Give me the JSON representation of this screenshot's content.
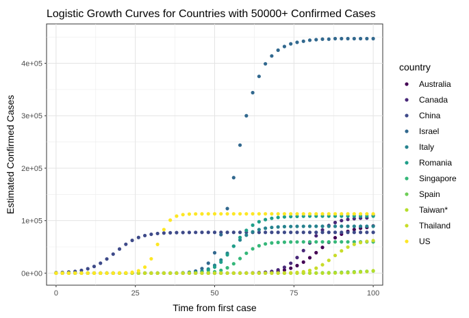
{
  "chart_data": {
    "type": "scatter",
    "title": "Logistic Growth Curves for Countries with 50000+ Confirmed Cases",
    "xlabel": "Time from first case",
    "ylabel": "Estimated Confirmed Cases",
    "xlim": [
      -3,
      103
    ],
    "ylim": [
      -23000,
      475000
    ],
    "x_ticks": [
      0,
      25,
      50,
      75,
      100
    ],
    "x_tick_labels": [
      "0",
      "25",
      "50",
      "75",
      "100"
    ],
    "y_ticks": [
      0,
      100000,
      200000,
      300000,
      400000
    ],
    "y_tick_labels": [
      "0e+00",
      "1e+05",
      "2e+05",
      "3e+05",
      "4e+05"
    ],
    "x": [
      0,
      2,
      4,
      6,
      8,
      10,
      12,
      14,
      16,
      18,
      20,
      22,
      24,
      26,
      28,
      30,
      32,
      34,
      36,
      38,
      40,
      42,
      44,
      46,
      48,
      50,
      52,
      54,
      56,
      58,
      60,
      62,
      64,
      66,
      68,
      70,
      72,
      74,
      76,
      78,
      80,
      82,
      84,
      86,
      88,
      90,
      92,
      94,
      96,
      98,
      100
    ],
    "grid": true,
    "legend_title": "country",
    "legend_position": "right",
    "series": [
      {
        "name": "Australia",
        "color": "#440154",
        "values": [
          0,
          0,
          0,
          0,
          0,
          0,
          0,
          0,
          0,
          0,
          0,
          0,
          0,
          0,
          0,
          0,
          0,
          0,
          0,
          0,
          0,
          0,
          0,
          0,
          0,
          0,
          0,
          0,
          0,
          100,
          200,
          400,
          700,
          1200,
          2100,
          3500,
          5800,
          9300,
          14300,
          21000,
          29300,
          38900,
          49000,
          58800,
          67400,
          74300,
          79500,
          83100,
          85500,
          87000,
          90000
        ]
      },
      {
        "name": "Canada",
        "color": "#482878",
        "values": [
          0,
          0,
          0,
          0,
          0,
          0,
          0,
          0,
          0,
          0,
          0,
          0,
          0,
          0,
          0,
          0,
          0,
          0,
          0,
          0,
          0,
          0,
          0,
          0,
          0,
          0,
          0,
          0,
          0,
          100,
          200,
          400,
          900,
          1700,
          3300,
          6200,
          11100,
          18800,
          29600,
          43000,
          57500,
          71100,
          82300,
          90700,
          96400,
          100100,
          102400,
          103800,
          104700,
          105200,
          110000
        ]
      },
      {
        "name": "China",
        "color": "#3e4a89",
        "values": [
          800,
          1300,
          2100,
          3300,
          5300,
          8300,
          12700,
          18900,
          26900,
          36200,
          45900,
          55000,
          62400,
          67900,
          71600,
          74000,
          75500,
          76400,
          76900,
          77200,
          77400,
          77500,
          77600,
          77700,
          77700,
          77700,
          77700,
          77700,
          77700,
          77700,
          77700,
          77700,
          77700,
          77700,
          77700,
          77700,
          77700,
          77700,
          77700,
          77700,
          77700,
          77700,
          77700,
          77700,
          77700,
          77700,
          77700,
          77700,
          77700,
          77700,
          77700
        ]
      },
      {
        "name": "Israel",
        "color": "#31688e",
        "values": [
          0,
          0,
          0,
          0,
          0,
          0,
          0,
          0,
          0,
          0,
          0,
          0,
          0,
          0,
          0,
          0,
          0,
          0,
          0,
          200,
          700,
          1700,
          3900,
          8700,
          18900,
          38800,
          73300,
          123000,
          182000,
          244000,
          300000,
          344000,
          375000,
          399000,
          414000,
          425000,
          432000,
          437000,
          440000,
          442000,
          444000,
          445000,
          446000,
          446000,
          447000,
          447000,
          447000,
          447000,
          447000,
          447000,
          447000
        ]
      },
      {
        "name": "Italy",
        "color": "#26828e",
        "values": [
          0,
          0,
          0,
          0,
          0,
          0,
          0,
          0,
          0,
          0,
          0,
          0,
          0,
          0,
          0,
          0,
          0,
          0,
          0,
          100,
          300,
          800,
          1800,
          3900,
          7900,
          14800,
          25000,
          37900,
          51300,
          63200,
          72300,
          78700,
          82900,
          85500,
          87100,
          88000,
          88600,
          88900,
          89100,
          89200,
          89300,
          89300,
          89300,
          89300,
          89300,
          89300,
          89300,
          89300,
          89300,
          89300,
          89300
        ]
      },
      {
        "name": "Romania",
        "color": "#1f9e89",
        "values": [
          0,
          0,
          0,
          0,
          0,
          0,
          0,
          0,
          0,
          0,
          0,
          0,
          0,
          0,
          0,
          0,
          0,
          0,
          0,
          100,
          200,
          500,
          1200,
          2700,
          5800,
          11500,
          21000,
          34800,
          51400,
          67900,
          81500,
          91400,
          97900,
          102000,
          104500,
          106100,
          107100,
          107800,
          108200,
          108400,
          108600,
          108700,
          108700,
          108700,
          108700,
          108700,
          108700,
          108700,
          108700,
          108700,
          108700
        ]
      },
      {
        "name": "Singapore",
        "color": "#35b779",
        "values": [
          0,
          0,
          0,
          0,
          0,
          0,
          0,
          0,
          0,
          0,
          0,
          0,
          0,
          0,
          0,
          0,
          0,
          0,
          0,
          0,
          0,
          100,
          200,
          500,
          1100,
          2500,
          5200,
          10100,
          17800,
          27800,
          37900,
          46300,
          52100,
          55600,
          57500,
          58500,
          59000,
          59300,
          59400,
          59500,
          59500,
          59500,
          59500,
          59500,
          59500,
          59500,
          59500,
          59500,
          59500,
          59500,
          59500
        ]
      },
      {
        "name": "Spain",
        "color": "#6ece58",
        "values": [
          0,
          0,
          0,
          0,
          0,
          0,
          0,
          0,
          0,
          0,
          0,
          0,
          0,
          0,
          0,
          0,
          0,
          0,
          0,
          0,
          0,
          0,
          0,
          0,
          0,
          0,
          0,
          0,
          0,
          0,
          0,
          0,
          0,
          0,
          0,
          0,
          0,
          100,
          100,
          200,
          300,
          400,
          600,
          800,
          1100,
          1500,
          1900,
          2400,
          2900,
          3400,
          4000
        ]
      },
      {
        "name": "Taiwan*",
        "color": "#b5de2b",
        "values": [
          0,
          0,
          0,
          0,
          0,
          0,
          0,
          0,
          0,
          0,
          0,
          0,
          0,
          0,
          0,
          0,
          0,
          0,
          0,
          0,
          0,
          0,
          0,
          0,
          0,
          0,
          0,
          0,
          0,
          0,
          0,
          0,
          0,
          0,
          0,
          0,
          0,
          0,
          0,
          0,
          0,
          0,
          0,
          100,
          200,
          400,
          700,
          1200,
          2000,
          3100,
          4500
        ]
      },
      {
        "name": "Thailand",
        "color": "#c8dc2a",
        "values": [
          0,
          0,
          0,
          0,
          0,
          0,
          0,
          0,
          0,
          0,
          0,
          0,
          0,
          0,
          0,
          0,
          0,
          0,
          0,
          0,
          0,
          0,
          0,
          0,
          0,
          0,
          0,
          0,
          0,
          0,
          0,
          0,
          0,
          0,
          0,
          100,
          300,
          600,
          1300,
          2600,
          5100,
          9400,
          15900,
          24300,
          33600,
          42400,
          49600,
          54800,
          58300,
          60500,
          62000
        ]
      },
      {
        "name": "US",
        "color": "#fde725",
        "values": [
          0,
          0,
          0,
          0,
          0,
          0,
          0,
          0,
          0,
          0,
          200,
          600,
          1600,
          4400,
          11400,
          27300,
          54700,
          83000,
          101000,
          108700,
          111500,
          112500,
          112800,
          112900,
          113000,
          113000,
          113000,
          113000,
          113000,
          113000,
          113000,
          113000,
          113000,
          113000,
          113000,
          113000,
          113000,
          113000,
          113000,
          113000,
          113000,
          113000,
          113000,
          113000,
          113000,
          113000,
          113000,
          113000,
          113000,
          113000,
          113000
        ]
      }
    ]
  }
}
